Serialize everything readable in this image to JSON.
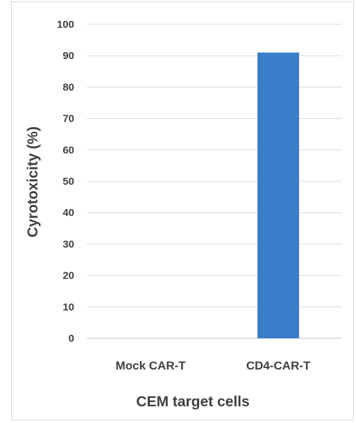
{
  "chart_data": {
    "type": "bar",
    "categories": [
      "Mock CAR-T",
      "CD4-CAR-T"
    ],
    "values": [
      0,
      91
    ],
    "xlabel": "CEM target cells",
    "ylabel": "Cyrotoxicity (%)",
    "ylim": [
      0,
      100
    ],
    "yticks": [
      "0",
      "10",
      "20",
      "30",
      "40",
      "50",
      "60",
      "70",
      "80",
      "90",
      "100"
    ],
    "grid": true,
    "legend": "none",
    "bar_color": "#3a7dc9"
  }
}
